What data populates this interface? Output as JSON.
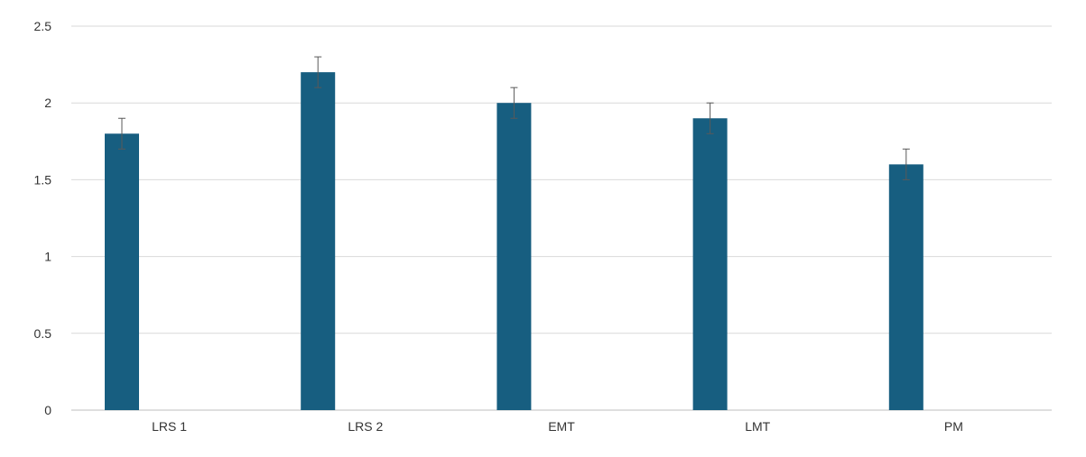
{
  "chart_data": {
    "type": "bar",
    "title": "",
    "xlabel": "",
    "ylabel": "",
    "categories": [
      "LRS 1",
      "LRS 2",
      "EMT",
      "LMT",
      "PM"
    ],
    "series": [
      {
        "values": [
          1.8,
          2.2,
          2.0,
          1.9,
          1.6
        ],
        "errors": [
          0.1,
          0.1,
          0.1,
          0.1,
          0.1
        ],
        "color": "#175E80"
      }
    ],
    "ylim": [
      0,
      2.5
    ],
    "yticks": [
      0,
      0.5,
      1,
      1.5,
      2,
      2.5
    ],
    "ytick_labels": [
      "0",
      "0.5",
      "1",
      "1.5",
      "2",
      "2.5"
    ],
    "grid": true,
    "legend": "none",
    "colors": {
      "bar": "#175E80",
      "grid": "#D9D9D9",
      "axis": "#BFBFBF",
      "error_bar": "#595959",
      "text": "#333333"
    }
  }
}
